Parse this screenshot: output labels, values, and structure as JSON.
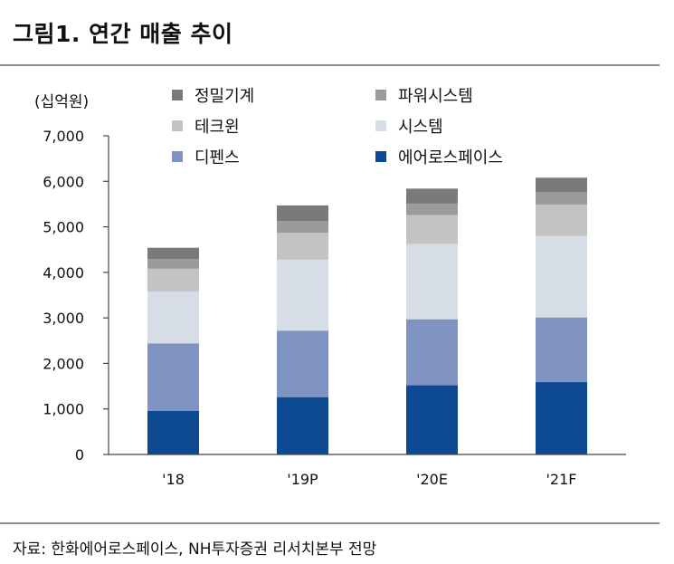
{
  "title": "그림1. 연간 매출 추이",
  "source": "자료: 한화에어로스페이스, NH투자증권 리서치본부 전망",
  "colors": {
    "정밀기계": "#7a7a7a",
    "파워시스템": "#9b9b9b",
    "테크윈": "#c3c3c3",
    "시스템": "#d6dde6",
    "디펜스": "#7f94c3",
    "에어로스페이스": "#0e4a93"
  },
  "chart_data": {
    "type": "bar",
    "stacked": true,
    "unit_label": "(십억원)",
    "categories": [
      "'18",
      "'19P",
      "'20E",
      "'21F"
    ],
    "ylim": [
      0,
      7000
    ],
    "yticks": [
      "0",
      "1,000",
      "2,000",
      "3,000",
      "4,000",
      "5,000",
      "6,000",
      "7,000"
    ],
    "ytick_values": [
      0,
      1000,
      2000,
      3000,
      4000,
      5000,
      6000,
      7000
    ],
    "legend_position": "top",
    "legend_order": [
      "정밀기계",
      "파워시스템",
      "테크윈",
      "시스템",
      "디펜스",
      "에어로스페이스"
    ],
    "series": [
      {
        "name": "에어로스페이스",
        "values": [
          960,
          1260,
          1520,
          1590
        ]
      },
      {
        "name": "디펜스",
        "values": [
          1480,
          1460,
          1450,
          1420
        ]
      },
      {
        "name": "시스템",
        "values": [
          1140,
          1560,
          1650,
          1790
        ]
      },
      {
        "name": "테크윈",
        "values": [
          500,
          590,
          640,
          690
        ]
      },
      {
        "name": "파워시스템",
        "values": [
          210,
          260,
          250,
          270
        ]
      },
      {
        "name": "정밀기계",
        "values": [
          250,
          340,
          330,
          320
        ]
      }
    ]
  }
}
